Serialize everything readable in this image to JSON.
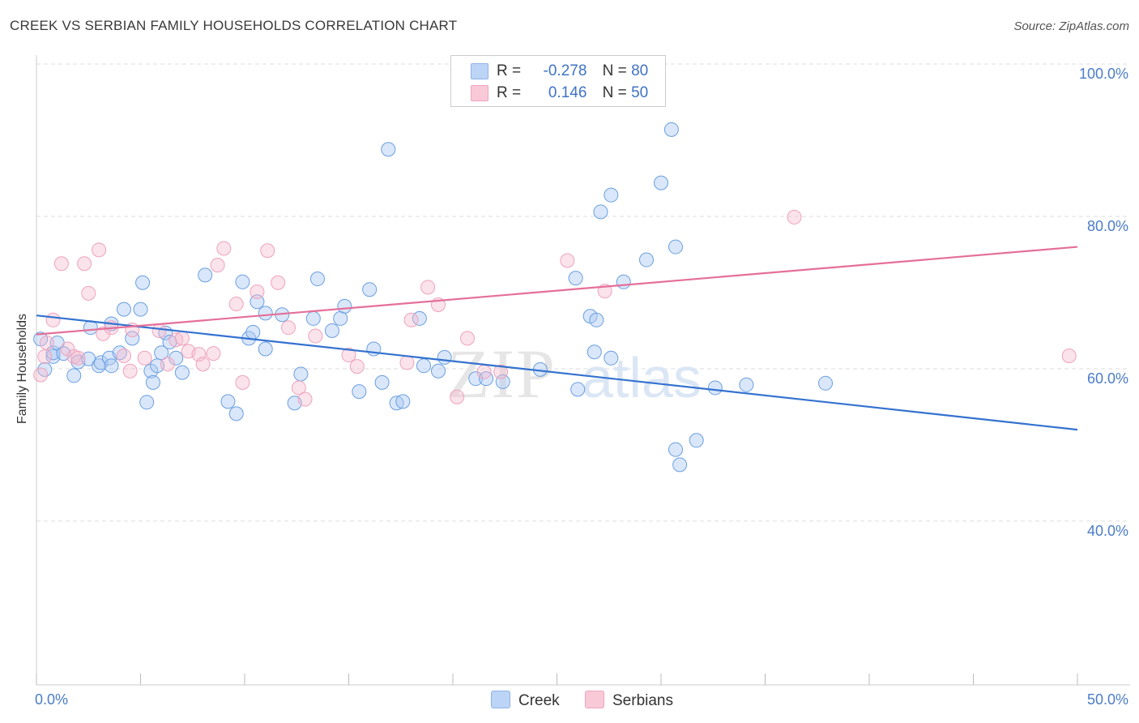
{
  "title": "CREEK VS SERBIAN FAMILY HOUSEHOLDS CORRELATION CHART",
  "source": "Source: ZipAtlas.com",
  "watermark": {
    "zip": "ZIP",
    "atlas": "atlas"
  },
  "legend": {
    "rows": [
      {
        "r_label": "R =",
        "r_value": "-0.278",
        "n_label": "N =",
        "n_value": "80"
      },
      {
        "r_label": "R =",
        "r_value": "0.146",
        "n_label": "N =",
        "n_value": "50"
      }
    ]
  },
  "chart_data": {
    "type": "scatter",
    "title": "CREEK VS SERBIAN FAMILY HOUSEHOLDS CORRELATION CHART",
    "xlabel": "",
    "ylabel": "Family Households",
    "xlim": [
      0,
      50
    ],
    "ylim": [
      18.5,
      100
    ],
    "x_tick_labels": [
      "0.0%",
      "50.0%"
    ],
    "y_ticks": [
      40,
      60,
      80,
      100
    ],
    "y_tick_labels": [
      "40.0%",
      "60.0%",
      "80.0%",
      "100.0%"
    ],
    "grid": true,
    "legend_position": "top-center",
    "colors": {
      "creek": "#6a9fe0",
      "serbians": "#f0a0bc",
      "creek_line": "#3472cf",
      "serbians_line": "#e46f99",
      "tick_text": "#4a7cc9"
    },
    "series": [
      {
        "name": "Creek",
        "r": -0.278,
        "n": 80,
        "trend": [
          [
            0,
            67.0
          ],
          [
            50,
            52.0
          ]
        ],
        "points": [
          [
            0.2,
            63.9
          ],
          [
            0.4,
            59.9
          ],
          [
            0.8,
            61.6
          ],
          [
            0.8,
            62.1
          ],
          [
            1.0,
            63.4
          ],
          [
            1.3,
            62.0
          ],
          [
            1.8,
            59.1
          ],
          [
            2.0,
            60.9
          ],
          [
            2.5,
            61.3
          ],
          [
            2.6,
            65.4
          ],
          [
            3.0,
            60.4
          ],
          [
            3.1,
            60.8
          ],
          [
            3.5,
            61.4
          ],
          [
            3.6,
            60.4
          ],
          [
            3.6,
            65.9
          ],
          [
            4.0,
            62.1
          ],
          [
            4.2,
            67.8
          ],
          [
            4.6,
            64.0
          ],
          [
            5.0,
            67.8
          ],
          [
            5.1,
            71.3
          ],
          [
            5.3,
            55.6
          ],
          [
            5.5,
            59.7
          ],
          [
            5.6,
            58.2
          ],
          [
            5.8,
            60.4
          ],
          [
            6.0,
            62.1
          ],
          [
            6.2,
            64.7
          ],
          [
            6.4,
            63.5
          ],
          [
            6.7,
            61.4
          ],
          [
            7.0,
            59.5
          ],
          [
            8.1,
            72.3
          ],
          [
            9.2,
            55.7
          ],
          [
            9.6,
            54.1
          ],
          [
            9.9,
            71.4
          ],
          [
            10.2,
            64.0
          ],
          [
            10.4,
            64.8
          ],
          [
            10.6,
            68.8
          ],
          [
            11.0,
            62.6
          ],
          [
            11.0,
            67.3
          ],
          [
            11.8,
            67.1
          ],
          [
            12.4,
            55.5
          ],
          [
            12.7,
            59.3
          ],
          [
            13.3,
            66.6
          ],
          [
            13.5,
            71.8
          ],
          [
            14.2,
            65.0
          ],
          [
            14.6,
            66.6
          ],
          [
            14.8,
            68.2
          ],
          [
            15.5,
            57.0
          ],
          [
            16.0,
            70.4
          ],
          [
            16.2,
            62.6
          ],
          [
            16.6,
            58.2
          ],
          [
            16.9,
            88.8
          ],
          [
            17.3,
            55.5
          ],
          [
            17.6,
            55.7
          ],
          [
            18.4,
            66.6
          ],
          [
            18.6,
            60.4
          ],
          [
            19.3,
            59.7
          ],
          [
            19.6,
            61.5
          ],
          [
            21.1,
            58.7
          ],
          [
            21.6,
            58.7
          ],
          [
            22.4,
            58.3
          ],
          [
            24.2,
            59.9
          ],
          [
            25.9,
            71.9
          ],
          [
            26.0,
            57.3
          ],
          [
            26.6,
            66.9
          ],
          [
            26.8,
            62.2
          ],
          [
            26.9,
            66.4
          ],
          [
            27.1,
            80.6
          ],
          [
            27.6,
            82.8
          ],
          [
            27.6,
            61.4
          ],
          [
            28.2,
            71.4
          ],
          [
            29.3,
            74.3
          ],
          [
            30.0,
            84.4
          ],
          [
            30.5,
            91.4
          ],
          [
            30.7,
            76.0
          ],
          [
            30.7,
            49.4
          ],
          [
            30.9,
            47.4
          ],
          [
            31.7,
            50.6
          ],
          [
            32.6,
            57.5
          ],
          [
            34.1,
            57.9
          ],
          [
            37.9,
            58.1
          ]
        ]
      },
      {
        "name": "Serbians",
        "r": 0.146,
        "n": 50,
        "trend": [
          [
            0,
            64.5
          ],
          [
            50,
            76.0
          ]
        ],
        "points": [
          [
            0.2,
            59.2
          ],
          [
            0.4,
            61.6
          ],
          [
            0.5,
            63.4
          ],
          [
            0.8,
            66.4
          ],
          [
            1.2,
            73.8
          ],
          [
            1.5,
            62.6
          ],
          [
            1.8,
            61.6
          ],
          [
            2.0,
            61.4
          ],
          [
            2.3,
            73.8
          ],
          [
            2.5,
            69.9
          ],
          [
            3.0,
            75.6
          ],
          [
            3.2,
            64.6
          ],
          [
            3.6,
            65.4
          ],
          [
            4.2,
            61.7
          ],
          [
            4.5,
            59.7
          ],
          [
            4.6,
            65.1
          ],
          [
            5.2,
            61.4
          ],
          [
            5.9,
            65.0
          ],
          [
            6.3,
            60.6
          ],
          [
            6.7,
            63.8
          ],
          [
            7.0,
            64.0
          ],
          [
            7.3,
            62.3
          ],
          [
            7.8,
            61.9
          ],
          [
            8.0,
            60.6
          ],
          [
            8.5,
            62.0
          ],
          [
            8.7,
            73.6
          ],
          [
            9.0,
            75.8
          ],
          [
            9.6,
            68.5
          ],
          [
            9.9,
            58.2
          ],
          [
            10.6,
            70.1
          ],
          [
            11.1,
            75.5
          ],
          [
            11.6,
            71.3
          ],
          [
            12.1,
            65.4
          ],
          [
            12.6,
            57.5
          ],
          [
            12.9,
            56.0
          ],
          [
            13.4,
            64.3
          ],
          [
            15.0,
            61.8
          ],
          [
            15.4,
            60.3
          ],
          [
            17.8,
            60.8
          ],
          [
            18.0,
            66.4
          ],
          [
            18.8,
            70.7
          ],
          [
            19.3,
            68.4
          ],
          [
            20.2,
            56.3
          ],
          [
            20.7,
            64.0
          ],
          [
            21.5,
            59.6
          ],
          [
            22.3,
            59.6
          ],
          [
            25.5,
            74.2
          ],
          [
            27.3,
            70.2
          ],
          [
            36.4,
            79.9
          ],
          [
            49.6,
            61.7
          ]
        ]
      }
    ]
  }
}
